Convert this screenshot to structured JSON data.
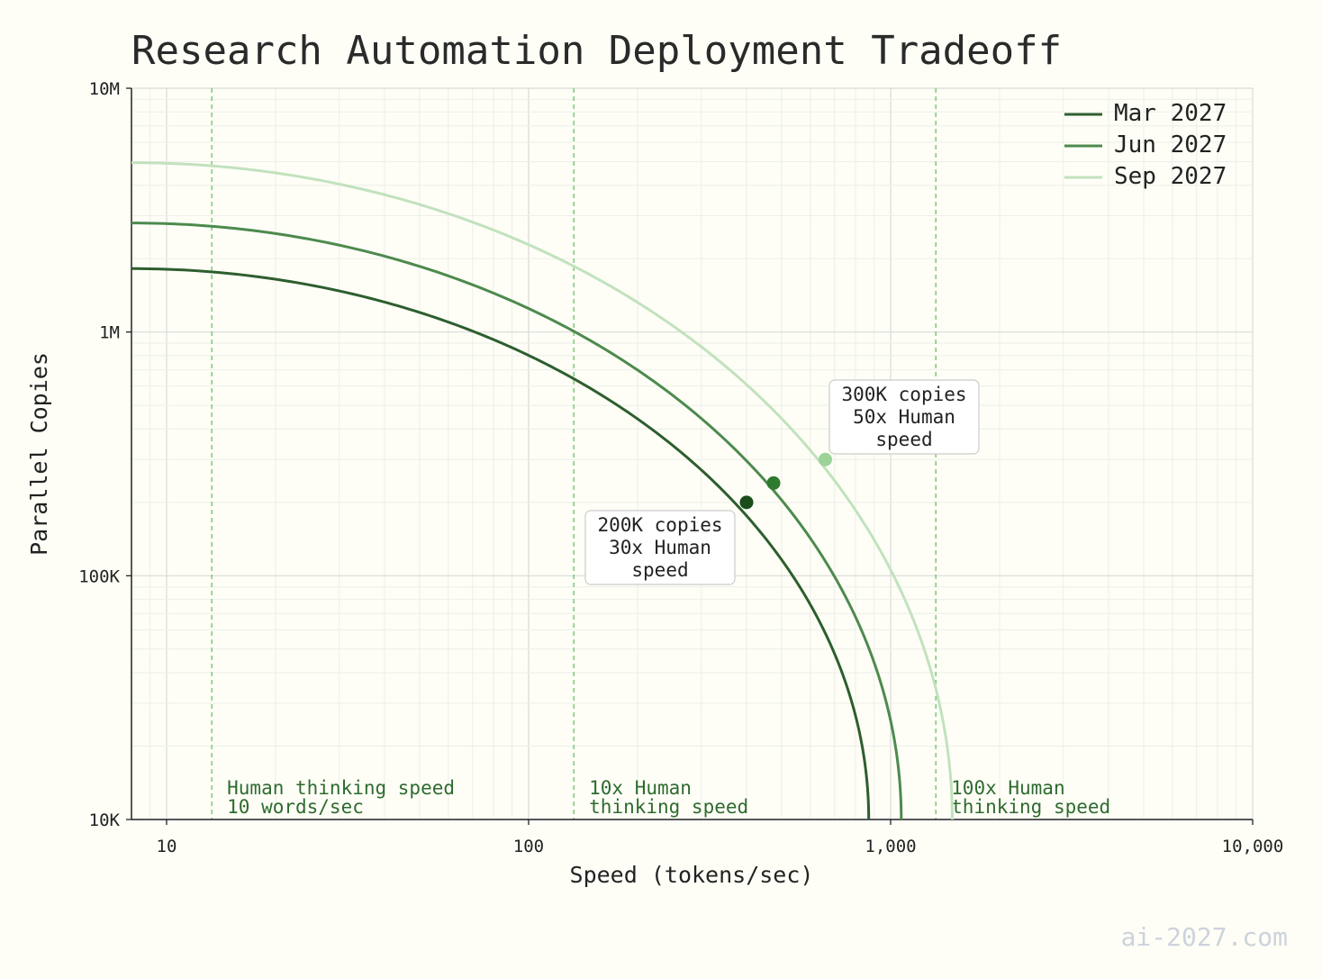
{
  "watermark": "ai-2027.com",
  "chart_data": {
    "type": "line",
    "title": "Research Automation Deployment Tradeoff",
    "xlabel": "Speed (tokens/sec)",
    "ylabel": "Parallel Copies",
    "x_scale": "log",
    "y_scale": "log",
    "xlim": [
      8,
      10000
    ],
    "ylim": [
      10000,
      10000000
    ],
    "x_ticks": [
      {
        "value": 10,
        "label": "10"
      },
      {
        "value": 100,
        "label": "100"
      },
      {
        "value": 1000,
        "label": "1,000"
      },
      {
        "value": 10000,
        "label": "10,000"
      }
    ],
    "y_ticks": [
      {
        "value": 10000,
        "label": "10K"
      },
      {
        "value": 100000,
        "label": "100K"
      },
      {
        "value": 1000000,
        "label": "1M"
      },
      {
        "value": 10000000,
        "label": "10M"
      }
    ],
    "grid": true,
    "legend_position": "top-right",
    "series": [
      {
        "name": "Mar 2027",
        "color": "#2d5e2d",
        "max_copies": 1820000,
        "max_speed": 870,
        "marker": {
          "x": 400,
          "y": 200000,
          "color": "#1a4d1a"
        }
      },
      {
        "name": "Jun 2027",
        "color": "#4d8a4d",
        "max_copies": 2800000,
        "max_speed": 1070,
        "marker": {
          "x": 475,
          "y": 240000,
          "color": "#2e7a2e"
        }
      },
      {
        "name": "Sep 2027",
        "color": "#c1e2bd",
        "max_copies": 4950000,
        "max_speed": 1480,
        "marker": {
          "x": 660,
          "y": 300000,
          "color": "#9bd399"
        }
      }
    ],
    "reference_lines": [
      {
        "x": 13.33,
        "lines": [
          "Human thinking speed",
          "10 words/sec"
        ]
      },
      {
        "x": 133.3,
        "lines": [
          "10x Human",
          "thinking speed"
        ]
      },
      {
        "x": 1333,
        "lines": [
          "100x Human",
          "thinking speed"
        ]
      }
    ],
    "annotations": [
      {
        "lines": [
          "200K copies",
          "30x Human",
          "speed"
        ],
        "anchor_series": 0
      },
      {
        "lines": [
          "300K copies",
          "50x Human",
          "speed"
        ],
        "anchor_series": 2
      }
    ],
    "colors": {
      "background": "#fefef7",
      "reference": "#6abf69",
      "grid": "#e0e0e0"
    }
  }
}
